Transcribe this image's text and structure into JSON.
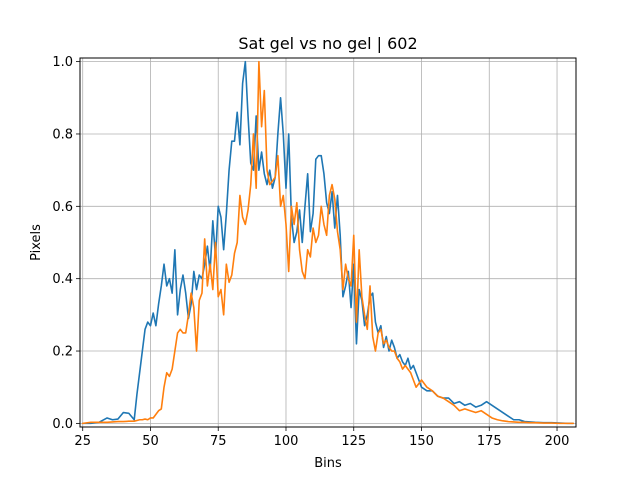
{
  "chart_data": {
    "type": "line",
    "title": "Sat gel vs no gel | 602",
    "xlabel": "Bins",
    "ylabel": "Pixels",
    "xlim": [
      24,
      207
    ],
    "ylim": [
      -0.01,
      1.01
    ],
    "xticks": [
      25,
      50,
      75,
      100,
      125,
      150,
      175,
      200
    ],
    "yticks": [
      0.0,
      0.2,
      0.4,
      0.6,
      0.8,
      1.0
    ],
    "grid": true,
    "series": [
      {
        "color": "#1f77b4",
        "x": [
          25,
          28,
          31,
          34,
          36,
          38,
          40,
          42,
          44,
          45,
          46,
          47,
          48,
          49,
          50,
          51,
          52,
          53,
          54,
          55,
          56,
          57,
          58,
          59,
          60,
          61,
          62,
          63,
          64,
          65,
          66,
          67,
          68,
          69,
          70,
          71,
          72,
          73,
          74,
          75,
          76,
          77,
          78,
          79,
          80,
          81,
          82,
          83,
          84,
          85,
          86,
          87,
          88,
          89,
          90,
          91,
          92,
          93,
          94,
          95,
          96,
          97,
          98,
          99,
          100,
          101,
          102,
          103,
          104,
          105,
          106,
          107,
          108,
          109,
          110,
          111,
          112,
          113,
          114,
          115,
          116,
          117,
          118,
          119,
          120,
          121,
          122,
          123,
          124,
          125,
          126,
          127,
          128,
          129,
          130,
          131,
          132,
          133,
          134,
          135,
          136,
          137,
          138,
          139,
          140,
          141,
          142,
          143,
          144,
          145,
          146,
          147,
          148,
          149,
          150,
          152,
          154,
          156,
          158,
          160,
          162,
          164,
          166,
          168,
          170,
          172,
          174,
          176,
          178,
          180,
          182,
          184,
          186,
          188,
          190,
          192,
          195,
          198,
          201,
          204,
          206
        ],
        "y": [
          0.0,
          0.0,
          0.003,
          0.015,
          0.01,
          0.012,
          0.03,
          0.028,
          0.01,
          0.08,
          0.14,
          0.2,
          0.26,
          0.28,
          0.27,
          0.305,
          0.27,
          0.33,
          0.38,
          0.44,
          0.38,
          0.4,
          0.36,
          0.48,
          0.3,
          0.37,
          0.41,
          0.36,
          0.29,
          0.33,
          0.42,
          0.37,
          0.41,
          0.4,
          0.44,
          0.49,
          0.42,
          0.56,
          0.46,
          0.6,
          0.57,
          0.48,
          0.58,
          0.7,
          0.78,
          0.78,
          0.86,
          0.77,
          0.94,
          1.0,
          0.85,
          0.72,
          0.7,
          0.85,
          0.7,
          0.75,
          0.69,
          0.66,
          0.7,
          0.65,
          0.68,
          0.8,
          0.9,
          0.8,
          0.65,
          0.8,
          0.57,
          0.5,
          0.53,
          0.59,
          0.5,
          0.6,
          0.69,
          0.53,
          0.58,
          0.73,
          0.74,
          0.74,
          0.69,
          0.61,
          0.58,
          0.64,
          0.54,
          0.63,
          0.52,
          0.35,
          0.38,
          0.42,
          0.32,
          0.44,
          0.22,
          0.37,
          0.34,
          0.27,
          0.3,
          0.35,
          0.36,
          0.28,
          0.25,
          0.27,
          0.21,
          0.24,
          0.2,
          0.23,
          0.21,
          0.18,
          0.19,
          0.17,
          0.16,
          0.18,
          0.15,
          0.16,
          0.14,
          0.12,
          0.1,
          0.09,
          0.09,
          0.075,
          0.07,
          0.07,
          0.055,
          0.06,
          0.05,
          0.055,
          0.045,
          0.05,
          0.06,
          0.05,
          0.04,
          0.03,
          0.02,
          0.01,
          0.01,
          0.005,
          0.004,
          0.003,
          0.002,
          0.002,
          0.001,
          0.0,
          0.0
        ]
      },
      {
        "color": "#ff7f0e",
        "x": [
          25,
          28,
          31,
          34,
          36,
          38,
          40,
          42,
          44,
          45,
          46,
          47,
          48,
          49,
          50,
          51,
          52,
          53,
          54,
          55,
          56,
          57,
          58,
          59,
          60,
          61,
          62,
          63,
          64,
          65,
          66,
          67,
          68,
          69,
          70,
          71,
          72,
          73,
          74,
          75,
          76,
          77,
          78,
          79,
          80,
          81,
          82,
          83,
          84,
          85,
          86,
          87,
          88,
          89,
          90,
          91,
          92,
          93,
          94,
          95,
          96,
          97,
          98,
          99,
          100,
          101,
          102,
          103,
          104,
          105,
          106,
          107,
          108,
          109,
          110,
          111,
          112,
          113,
          114,
          115,
          116,
          117,
          118,
          119,
          120,
          121,
          122,
          123,
          124,
          125,
          126,
          127,
          128,
          129,
          130,
          131,
          132,
          133,
          134,
          135,
          136,
          137,
          138,
          139,
          140,
          141,
          142,
          143,
          144,
          145,
          146,
          147,
          148,
          149,
          150,
          152,
          154,
          156,
          158,
          160,
          162,
          164,
          166,
          168,
          170,
          172,
          174,
          176,
          178,
          180,
          182,
          184,
          186,
          188,
          190,
          192,
          195,
          198,
          201,
          204,
          206
        ],
        "y": [
          0.0,
          0.003,
          0.003,
          0.003,
          0.004,
          0.005,
          0.005,
          0.006,
          0.006,
          0.008,
          0.01,
          0.01,
          0.012,
          0.01,
          0.015,
          0.015,
          0.025,
          0.035,
          0.04,
          0.1,
          0.14,
          0.13,
          0.15,
          0.2,
          0.25,
          0.26,
          0.25,
          0.25,
          0.3,
          0.36,
          0.32,
          0.2,
          0.34,
          0.36,
          0.51,
          0.38,
          0.44,
          0.37,
          0.5,
          0.35,
          0.37,
          0.3,
          0.44,
          0.39,
          0.41,
          0.47,
          0.5,
          0.63,
          0.57,
          0.55,
          0.59,
          0.66,
          0.8,
          0.65,
          1.0,
          0.82,
          0.92,
          0.7,
          0.66,
          0.67,
          0.68,
          0.74,
          0.6,
          0.63,
          0.55,
          0.42,
          0.6,
          0.55,
          0.61,
          0.48,
          0.42,
          0.4,
          0.48,
          0.46,
          0.54,
          0.5,
          0.52,
          0.6,
          0.55,
          0.52,
          0.63,
          0.66,
          0.62,
          0.53,
          0.48,
          0.37,
          0.44,
          0.4,
          0.38,
          0.52,
          0.28,
          0.48,
          0.35,
          0.3,
          0.26,
          0.38,
          0.24,
          0.2,
          0.25,
          0.26,
          0.22,
          0.23,
          0.21,
          0.2,
          0.2,
          0.18,
          0.17,
          0.15,
          0.16,
          0.15,
          0.14,
          0.12,
          0.1,
          0.11,
          0.12,
          0.1,
          0.09,
          0.075,
          0.07,
          0.06,
          0.05,
          0.035,
          0.04,
          0.035,
          0.03,
          0.035,
          0.025,
          0.015,
          0.01,
          0.007,
          0.005,
          0.004,
          0.003,
          0.003,
          0.002,
          0.002,
          0.001,
          0.001,
          0.0,
          0.0,
          0.0
        ]
      }
    ]
  }
}
